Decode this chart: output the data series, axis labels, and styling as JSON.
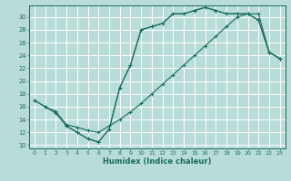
{
  "xlabel": "Humidex (Indice chaleur)",
  "bg_color": "#b8ddd8",
  "grid_color": "#ffffff",
  "line_color": "#1a6b5a",
  "xlim": [
    -0.5,
    23.5
  ],
  "ylim": [
    9.5,
    31.8
  ],
  "xticks": [
    0,
    1,
    2,
    3,
    4,
    5,
    6,
    7,
    8,
    9,
    10,
    11,
    12,
    13,
    14,
    15,
    16,
    17,
    18,
    19,
    20,
    21,
    22,
    23
  ],
  "yticks": [
    10,
    12,
    14,
    16,
    18,
    20,
    22,
    24,
    26,
    28,
    30
  ],
  "curve1_x": [
    0,
    1,
    2,
    3,
    4,
    5,
    6,
    7,
    8,
    9,
    10,
    11,
    12,
    13,
    14,
    15,
    16,
    17,
    18,
    19,
    20,
    21,
    22,
    23
  ],
  "curve1_y": [
    17,
    16,
    15,
    13,
    12,
    11,
    10.5,
    12.5,
    19,
    22.5,
    28,
    28.5,
    29,
    30.5,
    30.5,
    31,
    31.5,
    31,
    30.5,
    30.5,
    30.5,
    29.5,
    24.5,
    23.5
  ],
  "curve2_x": [
    0,
    1,
    2,
    3,
    4,
    5,
    6,
    7,
    8,
    9,
    10,
    11,
    12,
    13,
    14,
    15,
    16,
    17,
    18,
    19,
    20,
    21,
    22,
    23
  ],
  "curve2_y": [
    17,
    16,
    15.3,
    13.2,
    12.8,
    12.3,
    12.0,
    13.0,
    14.0,
    15.2,
    16.5,
    18.0,
    19.5,
    21.0,
    22.5,
    24.0,
    25.5,
    27.0,
    28.5,
    30.0,
    30.5,
    30.5,
    24.5,
    23.5
  ],
  "curve3_x": [
    3,
    4,
    5,
    6,
    7,
    8,
    9,
    10,
    11,
    12,
    13,
    14,
    15,
    16,
    17,
    18,
    19,
    20,
    21,
    22,
    23
  ],
  "curve3_y": [
    13,
    12,
    11,
    10.5,
    12.5,
    19,
    22.5,
    28,
    28.5,
    29,
    30.5,
    30.5,
    31,
    31.5,
    31,
    30.5,
    30.5,
    30.5,
    29.5,
    24.5,
    23.5
  ]
}
